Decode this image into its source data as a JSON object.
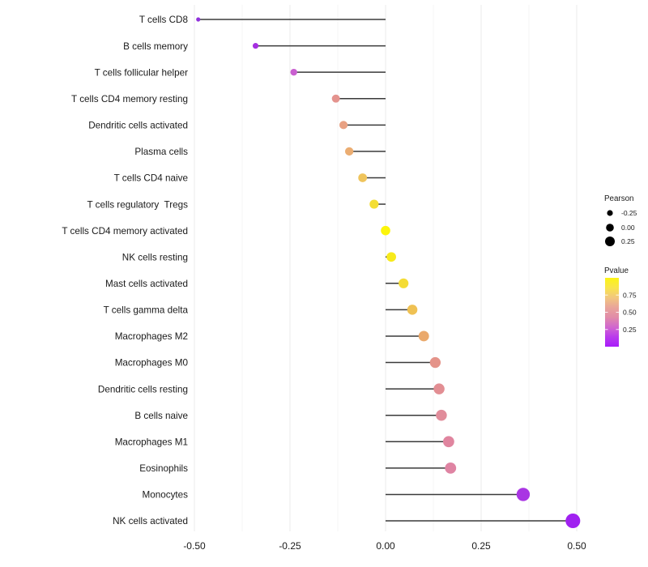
{
  "chart_data": {
    "type": "lollipop",
    "title": "",
    "xlabel": "",
    "ylabel": "",
    "x_axis": {
      "min": -0.5,
      "max": 0.5,
      "major_ticks": [
        -0.5,
        -0.25,
        0,
        0.25,
        0.5
      ],
      "major_tick_labels": [
        "-0.50",
        "-0.25",
        "0.00",
        "0.25",
        "0.50"
      ],
      "minor_ticks": [
        -0.375,
        -0.125,
        0.125,
        0.375
      ]
    },
    "points": [
      {
        "label": "T cells CD8",
        "pearson": -0.49,
        "pvalue": 0.02,
        "color": "#9031DB"
      },
      {
        "label": "B cells memory",
        "pearson": -0.34,
        "pvalue": 0.09,
        "color": "#A52FE0"
      },
      {
        "label": "T cells follicular helper",
        "pearson": -0.24,
        "pvalue": 0.26,
        "color": "#C95FD0"
      },
      {
        "label": "T cells CD4 memory resting",
        "pearson": -0.13,
        "pvalue": 0.55,
        "color": "#E4938E"
      },
      {
        "label": "Dendritic cells activated",
        "pearson": -0.11,
        "pvalue": 0.61,
        "color": "#E8A183"
      },
      {
        "label": "Plasma cells",
        "pearson": -0.095,
        "pvalue": 0.66,
        "color": "#EBAD72"
      },
      {
        "label": "T cells CD4 naive",
        "pearson": -0.06,
        "pvalue": 0.76,
        "color": "#EFC45C"
      },
      {
        "label": "T cells regulatory  Tregs",
        "pearson": -0.03,
        "pvalue": 0.86,
        "color": "#F4DE33"
      },
      {
        "label": "T cells CD4 memory activated",
        "pearson": 0.0,
        "pvalue": 0.99,
        "color": "#FCF50A"
      },
      {
        "label": "NK cells resting",
        "pearson": 0.015,
        "pvalue": 0.93,
        "color": "#F7EA1B"
      },
      {
        "label": "Mast cells activated",
        "pearson": 0.047,
        "pvalue": 0.86,
        "color": "#F4DC35"
      },
      {
        "label": "T cells gamma delta",
        "pearson": 0.07,
        "pvalue": 0.75,
        "color": "#EFC153"
      },
      {
        "label": "Macrophages M2",
        "pearson": 0.1,
        "pvalue": 0.66,
        "color": "#EAA96C"
      },
      {
        "label": "Macrophages M0",
        "pearson": 0.13,
        "pvalue": 0.56,
        "color": "#E49389"
      },
      {
        "label": "Dendritic cells resting",
        "pearson": 0.14,
        "pvalue": 0.53,
        "color": "#E28E93"
      },
      {
        "label": "B cells naive",
        "pearson": 0.146,
        "pvalue": 0.51,
        "color": "#E18D9B"
      },
      {
        "label": "Macrophages M1",
        "pearson": 0.165,
        "pvalue": 0.47,
        "color": "#E0859F"
      },
      {
        "label": "Eosinophils",
        "pearson": 0.17,
        "pvalue": 0.46,
        "color": "#DF84A3"
      },
      {
        "label": "Monocytes",
        "pearson": 0.36,
        "pvalue": 0.1,
        "color": "#A935E3"
      },
      {
        "label": "NK cells activated",
        "pearson": 0.49,
        "pvalue": 0.03,
        "color": "#A021F0"
      }
    ],
    "legend": {
      "size": {
        "title": "Pearson",
        "entries": [
          {
            "label": "-0.25",
            "value": -0.25
          },
          {
            "label": "0.00",
            "value": 0.0
          },
          {
            "label": "0.25",
            "value": 0.25
          }
        ],
        "dot_color": "#000000"
      },
      "color": {
        "title": "Pvalue",
        "tick_labels": [
          "0.75",
          "0.50",
          "0.25"
        ],
        "tick_values": [
          0.75,
          0.5,
          0.25
        ],
        "bar_min": 0.0,
        "bar_max": 1.0,
        "gradient_top_to_bottom": [
          "#FCF514",
          "#F9E54A",
          "#F2C77E",
          "#E9A59A",
          "#E18CA8",
          "#D167CE",
          "#B93BEC",
          "#A81CFA"
        ]
      }
    },
    "style": {
      "background": "#FFFFFF",
      "stem_color": "#3A3A3A",
      "major_grid_color": "#EBEBEB",
      "minor_grid_color": "#F5F5F5",
      "text_color": "#1A1A1A"
    }
  }
}
